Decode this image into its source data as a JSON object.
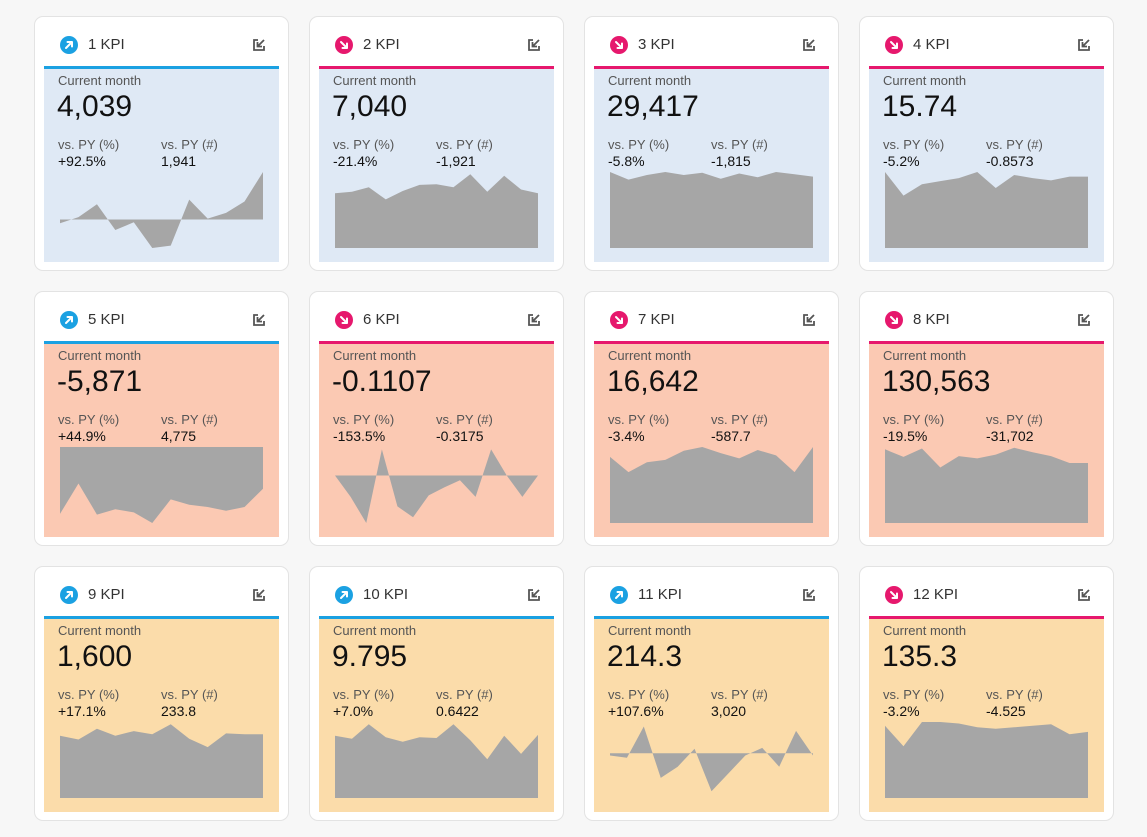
{
  "common": {
    "current_label": "Current month",
    "pct_label": "vs. PY (%)",
    "abs_label": "vs. PY (#)"
  },
  "colors": {
    "up": "#1ba1e2",
    "down": "#e6186d",
    "spark_fill": "#a6a6a6",
    "blue_bg": "#dfe9f5",
    "red_bg": "#fbc9b3",
    "orange_bg": "#fbdcaa"
  },
  "cards": [
    {
      "title": "1 KPI",
      "trend": "up",
      "bg": "blue",
      "value": "4,039",
      "pct": "+92.5%",
      "abs": "1,941",
      "spark": [
        -0.08,
        0.05,
        0.32,
        -0.22,
        -0.06,
        -0.6,
        -0.55,
        0.42,
        0.02,
        0.14,
        0.38,
        1.0
      ],
      "spark_min": -0.6,
      "spark_max": 1.0
    },
    {
      "title": "2 KPI",
      "trend": "down",
      "bg": "blue",
      "value": "7,040",
      "pct": "-21.4%",
      "abs": "-1,921",
      "spark": [
        0.72,
        0.74,
        0.8,
        0.64,
        0.75,
        0.83,
        0.84,
        0.8,
        0.97,
        0.74,
        0.95,
        0.77,
        0.72
      ],
      "spark_min": 0,
      "spark_max": 1.0
    },
    {
      "title": "3 KPI",
      "trend": "down",
      "bg": "blue",
      "value": "29,417",
      "pct": "-5.8%",
      "abs": "-1,815",
      "spark": [
        1.0,
        0.9,
        0.96,
        1.0,
        0.96,
        0.99,
        0.91,
        0.98,
        0.93,
        1.0,
        0.97,
        0.94
      ],
      "spark_min": 0,
      "spark_max": 1.0
    },
    {
      "title": "4 KPI",
      "trend": "down",
      "bg": "blue",
      "value": "15.74",
      "pct": "-5.2%",
      "abs": "-0.8573",
      "spark": [
        1.0,
        0.69,
        0.84,
        0.88,
        0.92,
        1.0,
        0.79,
        0.96,
        0.92,
        0.89,
        0.94,
        0.94
      ],
      "spark_min": 0,
      "spark_max": 1.0
    },
    {
      "title": "5 KPI",
      "trend": "up",
      "bg": "red",
      "value": "-5,871",
      "pct": "+44.9%",
      "abs": "4,775",
      "spark": [
        -0.88,
        -0.48,
        -0.89,
        -0.82,
        -0.86,
        -1.0,
        -0.69,
        -0.76,
        -0.79,
        -0.84,
        -0.79,
        -0.55
      ],
      "spark_min": -1.0,
      "spark_max": 0
    },
    {
      "title": "6 KPI",
      "trend": "down",
      "bg": "red",
      "value": "-0.1107",
      "pct": "-153.5%",
      "abs": "-0.3175",
      "spark": [
        0.0,
        -0.45,
        -1.0,
        0.55,
        -0.65,
        -0.88,
        -0.42,
        -0.25,
        -0.1,
        -0.45,
        0.55,
        0.0,
        -0.45,
        0.0
      ],
      "spark_min": -1.0,
      "spark_max": 0.6
    },
    {
      "title": "7 KPI",
      "trend": "down",
      "bg": "red",
      "value": "16,642",
      "pct": "-3.4%",
      "abs": "-587.7",
      "spark": [
        0.87,
        0.67,
        0.8,
        0.83,
        0.95,
        1.0,
        0.92,
        0.85,
        0.96,
        0.89,
        0.67,
        1.0
      ],
      "spark_min": 0,
      "spark_max": 1.0
    },
    {
      "title": "8 KPI",
      "trend": "down",
      "bg": "red",
      "value": "130,563",
      "pct": "-19.5%",
      "abs": "-31,702",
      "spark": [
        0.97,
        0.87,
        0.98,
        0.73,
        0.88,
        0.85,
        0.9,
        0.99,
        0.93,
        0.88,
        0.79,
        0.79
      ],
      "spark_min": 0,
      "spark_max": 1.0
    },
    {
      "title": "9 KPI",
      "trend": "up",
      "bg": "orange",
      "value": "1,600",
      "pct": "+17.1%",
      "abs": "233.8",
      "spark": [
        0.82,
        0.77,
        0.91,
        0.82,
        0.88,
        0.84,
        0.97,
        0.78,
        0.67,
        0.85,
        0.84,
        0.84
      ],
      "spark_min": 0,
      "spark_max": 1.0
    },
    {
      "title": "10 KPI",
      "trend": "up",
      "bg": "orange",
      "value": "9.795",
      "pct": "+7.0%",
      "abs": "0.6422",
      "spark": [
        0.82,
        0.78,
        0.97,
        0.8,
        0.74,
        0.8,
        0.79,
        0.97,
        0.76,
        0.51,
        0.82,
        0.58,
        0.83
      ],
      "spark_min": 0,
      "spark_max": 1.0
    },
    {
      "title": "11 KPI",
      "trend": "up",
      "bg": "orange",
      "value": "214.3",
      "pct": "+107.6%",
      "abs": "3,020",
      "spark": [
        -0.05,
        -0.1,
        0.6,
        -0.55,
        -0.3,
        0.1,
        -0.85,
        -0.45,
        -0.05,
        0.12,
        -0.3,
        0.5,
        -0.05
      ],
      "spark_min": -1.0,
      "spark_max": 0.7
    },
    {
      "title": "12 KPI",
      "trend": "down",
      "bg": "orange",
      "value": "135.3",
      "pct": "-3.2%",
      "abs": "-4.525",
      "spark": [
        0.95,
        0.68,
        1.0,
        1.0,
        0.98,
        0.93,
        0.91,
        0.93,
        0.95,
        0.97,
        0.84,
        0.87
      ],
      "spark_min": 0,
      "spark_max": 1.0
    }
  ]
}
